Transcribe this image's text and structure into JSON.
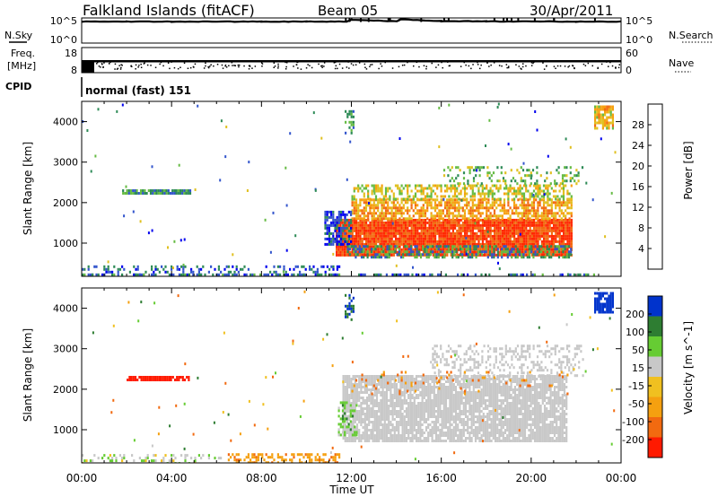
{
  "header": {
    "title": "Falkland Islands (fitACF)",
    "beam": "Beam 05",
    "date": "30/Apr/2011"
  },
  "colors": {
    "power_scale": [
      "#0000ee",
      "#3355cc",
      "#2e8b57",
      "#66bb44",
      "#e0c020",
      "#f7a010",
      "#f26a10",
      "#ff2a00"
    ],
    "velocity_scale": [
      "#0033cc",
      "#2e7d32",
      "#66cc33",
      "#c8c8c8",
      "#f0c020",
      "#f5a010",
      "#f26a10",
      "#ff1a00"
    ],
    "ground_scatter": "#c8c8c8"
  },
  "chart_data": [
    {
      "type": "line",
      "name": "noise-panel",
      "left_label": "N.Sky",
      "right_label": "N.Search",
      "left_ticks": [
        "10^5",
        "10^0"
      ],
      "right_ticks": [
        "10^5",
        "10^0"
      ],
      "xlim": [
        0,
        24
      ],
      "series": [
        {
          "role": "sky",
          "x": [
            0,
            2,
            4,
            6,
            8,
            10,
            11.8,
            12,
            14,
            14.2,
            16,
            18,
            20,
            22,
            24
          ],
          "values": [
            4.7,
            4.7,
            4.7,
            4.7,
            4.7,
            4.7,
            4.7,
            5.1,
            4.75,
            5.2,
            4.8,
            4.75,
            4.75,
            4.7,
            4.7
          ]
        }
      ]
    },
    {
      "type": "scatter",
      "name": "frequency-panel",
      "left_label": "Freq.",
      "left_unit": "[MHz]",
      "right_label": "Nave",
      "left_ticks": [
        "18",
        "8"
      ],
      "right_ticks": [
        "60",
        "0"
      ],
      "xlim": [
        0,
        24
      ],
      "series": [
        {
          "role": "freq",
          "x": [
            0,
            24
          ],
          "values": [
            12,
            12
          ]
        }
      ]
    },
    {
      "type": "table",
      "name": "cpid-row",
      "label": "CPID",
      "value": "normal (fast) 151"
    },
    {
      "type": "heatmap",
      "name": "power-panel",
      "ylabel": "Slant Range [km]",
      "colorbar_label": "Power [dB]",
      "colorbar_ticks": [
        "28",
        "24",
        "20",
        "16",
        "12",
        "8",
        "4"
      ],
      "colorbar_lim": [
        0,
        32
      ],
      "ylim": [
        180,
        4500
      ],
      "yticks": [
        1000,
        2000,
        3000,
        4000
      ],
      "xlim": [
        0,
        24
      ],
      "regions": [
        {
          "t0": 11.3,
          "t1": 21.8,
          "r0": 700,
          "r1": 1600,
          "level": 29,
          "density": 0.95
        },
        {
          "t0": 12.0,
          "t1": 21.8,
          "r0": 1600,
          "r1": 2100,
          "level": 22,
          "density": 0.7
        },
        {
          "t0": 12.0,
          "t1": 21.8,
          "r0": 2100,
          "r1": 2450,
          "level": 17,
          "density": 0.45
        },
        {
          "t0": 16.0,
          "t1": 22.3,
          "r0": 2450,
          "r1": 2900,
          "level": 14,
          "density": 0.25
        },
        {
          "t0": 10.8,
          "t1": 12.0,
          "r0": 1000,
          "r1": 1800,
          "level": 6,
          "density": 0.7
        },
        {
          "t0": 11.8,
          "t1": 21.8,
          "r0": 650,
          "r1": 950,
          "level": 10,
          "density": 0.5
        },
        {
          "t0": 1.8,
          "t1": 4.8,
          "r0": 2200,
          "r1": 2330,
          "level": 10,
          "density": 0.9
        },
        {
          "t0": 22.8,
          "t1": 23.6,
          "r0": 3850,
          "r1": 4400,
          "level": 20,
          "density": 0.8
        },
        {
          "t0": 11.7,
          "t1": 12.1,
          "r0": 3700,
          "r1": 4350,
          "level": 9,
          "density": 0.4
        },
        {
          "t0": 0.0,
          "t1": 11.5,
          "r0": 200,
          "r1": 450,
          "level": 7,
          "density": 0.3
        },
        {
          "t0": 0.0,
          "t1": 24.0,
          "r0": 180,
          "r1": 250,
          "level": 8,
          "density": 0.4
        }
      ]
    },
    {
      "type": "heatmap",
      "name": "velocity-panel",
      "ylabel": "Slant Range [km]",
      "colorbar_label": "Velocity [m s^-1]",
      "colorbar_ticks": [
        "200",
        "100",
        "50",
        "15",
        "-15",
        "-50",
        "-100",
        "-200"
      ],
      "colorbar_lim": [
        -250,
        250
      ],
      "ylim": [
        180,
        4500
      ],
      "yticks": [
        1000,
        2000,
        3000,
        4000
      ],
      "xlim": [
        0,
        24
      ],
      "xticks": [
        "00:00",
        "04:00",
        "08:00",
        "12:00",
        "16:00",
        "20:00",
        "00:00"
      ],
      "xlabel": "Time UT",
      "regions": [
        {
          "t0": 11.6,
          "t1": 21.6,
          "r0": 700,
          "r1": 2350,
          "level": 0,
          "density": 0.85,
          "ground": true
        },
        {
          "t0": 15.5,
          "t1": 22.3,
          "r0": 2350,
          "r1": 3100,
          "level": 0,
          "density": 0.3,
          "ground": true
        },
        {
          "t0": 12.0,
          "t1": 21.6,
          "r0": 1900,
          "r1": 2450,
          "level": -80,
          "density": 0.08
        },
        {
          "t0": 11.4,
          "t1": 12.2,
          "r0": 900,
          "r1": 1700,
          "level": 50,
          "density": 0.5
        },
        {
          "t0": 2.0,
          "t1": 4.8,
          "r0": 2200,
          "r1": 2330,
          "level": -200,
          "density": 0.9
        },
        {
          "t0": 22.8,
          "t1": 23.6,
          "r0": 3900,
          "r1": 4400,
          "level": 220,
          "density": 0.9
        },
        {
          "t0": 11.7,
          "t1": 12.1,
          "r0": 3700,
          "r1": 4350,
          "level": 150,
          "density": 0.4
        },
        {
          "t0": 6.5,
          "t1": 11.5,
          "r0": 200,
          "r1": 420,
          "level": -60,
          "density": 0.4
        },
        {
          "t0": 0.0,
          "t1": 6.5,
          "r0": 200,
          "r1": 400,
          "level": 20,
          "density": 0.25
        }
      ]
    }
  ]
}
